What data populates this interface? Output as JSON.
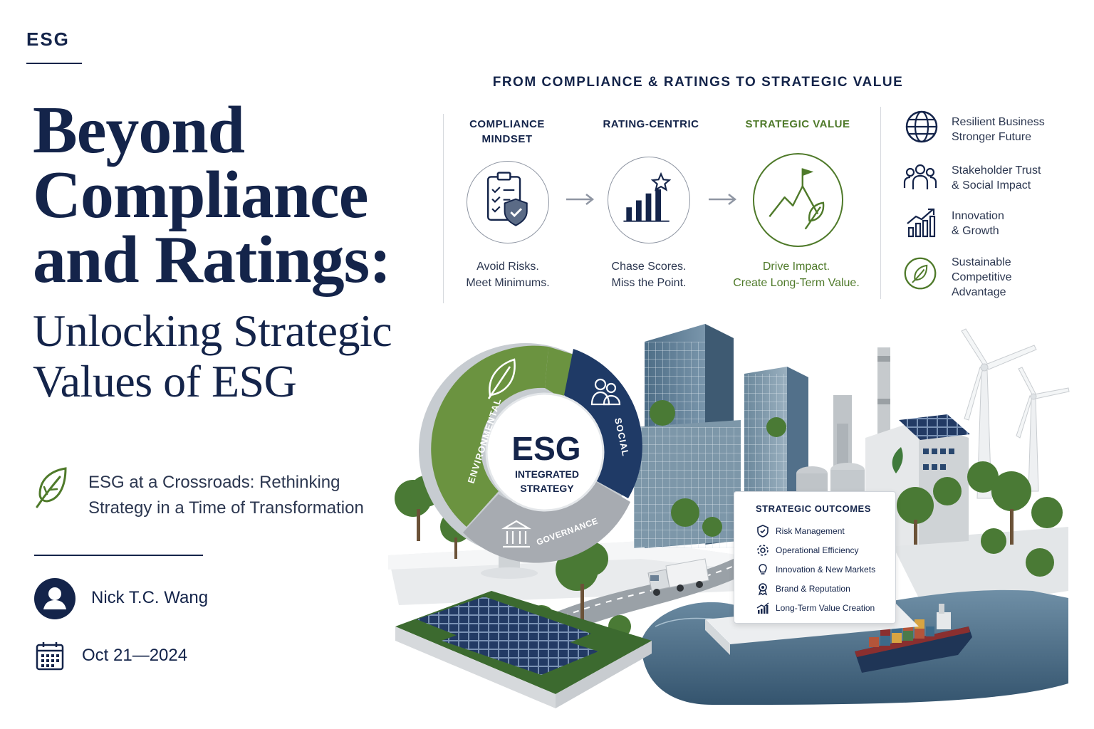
{
  "header": {
    "tag": "ESG"
  },
  "title": {
    "line1": "Beyond",
    "line2": "Compliance",
    "line3": "and Ratings:",
    "line4": "Unlocking Strategic",
    "line5": "Values of ESG"
  },
  "subtitle": {
    "line1": "ESG at a Crossroads: Rethinking",
    "line2": "Strategy in a Time of Transformation",
    "icon": "leaf-icon"
  },
  "author": {
    "name": "Nick T.C. Wang",
    "icon": "user-avatar-icon"
  },
  "date": {
    "text": "Oct 21—2024",
    "icon": "calendar-icon"
  },
  "journey": {
    "title": "FROM COMPLIANCE & RATINGS TO STRATEGIC VALUE",
    "stages": [
      {
        "label_line1": "COMPLIANCE",
        "label_line2": "MINDSET",
        "caption_line1": "Avoid Risks.",
        "caption_line2": "Meet Minimums.",
        "icon": "checklist-shield-icon"
      },
      {
        "label_line1": "RATING-CENTRIC",
        "label_line2": "",
        "caption_line1": "Chase Scores.",
        "caption_line2": "Miss the Point.",
        "icon": "bar-chart-star-icon"
      },
      {
        "label_line1": "STRATEGIC VALUE",
        "label_line2": "",
        "caption_line1": "Drive Impact.",
        "caption_line2": "Create Long-Term Value.",
        "icon": "mountain-flag-leaf-icon"
      }
    ]
  },
  "benefits": [
    {
      "line1": "Resilient Business",
      "line2": "Stronger Future",
      "line3": "",
      "icon": "globe-icon"
    },
    {
      "line1": "Stakeholder Trust",
      "line2": "& Social Impact",
      "line3": "",
      "icon": "people-group-icon"
    },
    {
      "line1": "Innovation",
      "line2": "& Growth",
      "line3": "",
      "icon": "growth-chart-icon"
    },
    {
      "line1": "Sustainable",
      "line2": "Competitive",
      "line3": "Advantage",
      "icon": "leaf-circle-icon"
    }
  ],
  "wheel": {
    "center_title": "ESG",
    "center_line1": "INTEGRATED",
    "center_line2": "STRATEGY",
    "environmental": "ENVIRONMENTAL",
    "social": "SOCIAL",
    "governance": "GOVERNANCE"
  },
  "outcomes": {
    "title": "STRATEGIC OUTCOMES",
    "items": [
      {
        "label": "Risk Management",
        "icon": "shield-check-icon"
      },
      {
        "label": "Operational Efficiency",
        "icon": "gear-icon"
      },
      {
        "label": "Innovation & New Markets",
        "icon": "lightbulb-icon"
      },
      {
        "label": "Brand & Reputation",
        "icon": "award-ribbon-icon"
      },
      {
        "label": "Long-Term Value Creation",
        "icon": "trend-chart-icon"
      }
    ]
  },
  "colors": {
    "navy": "#14244a",
    "green": "#4f7a2a",
    "wheel_green": "#6b9340",
    "wheel_navy": "#1f3a66",
    "wheel_gray": "#a7abb1"
  }
}
